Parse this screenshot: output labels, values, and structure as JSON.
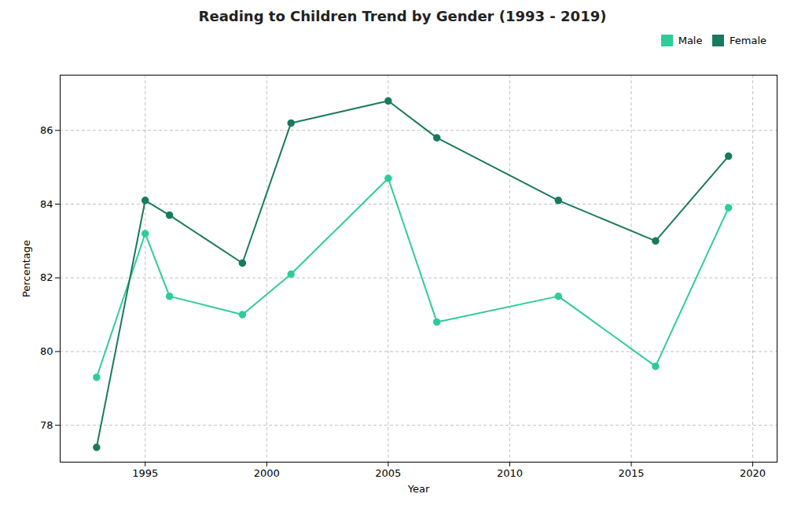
{
  "chart_data": {
    "type": "line",
    "title": "Reading to Children Trend by Gender (1993 - 2019)",
    "xlabel": "Year",
    "ylabel": "Percentage",
    "x": [
      1993,
      1995,
      1996,
      1999,
      2001,
      2005,
      2007,
      2012,
      2016,
      2019
    ],
    "series": [
      {
        "name": "Male",
        "color": "#2ecc9a",
        "marker": "circle",
        "values": [
          79.3,
          83.2,
          81.5,
          81.0,
          82.1,
          84.7,
          80.8,
          81.5,
          79.6,
          83.9
        ]
      },
      {
        "name": "Female",
        "color": "#1a7a5e",
        "marker": "circle",
        "values": [
          77.4,
          84.1,
          83.7,
          82.4,
          86.2,
          86.8,
          85.8,
          84.1,
          83.0,
          85.3
        ]
      }
    ],
    "xlim": [
      1991.5,
      2021.0
    ],
    "xticks": [
      1995,
      2000,
      2005,
      2010,
      2015,
      2020
    ],
    "ylim": [
      77.0,
      87.5
    ],
    "yticks": [
      78,
      80,
      82,
      84,
      86
    ],
    "grid": true,
    "legend": "upper right"
  }
}
